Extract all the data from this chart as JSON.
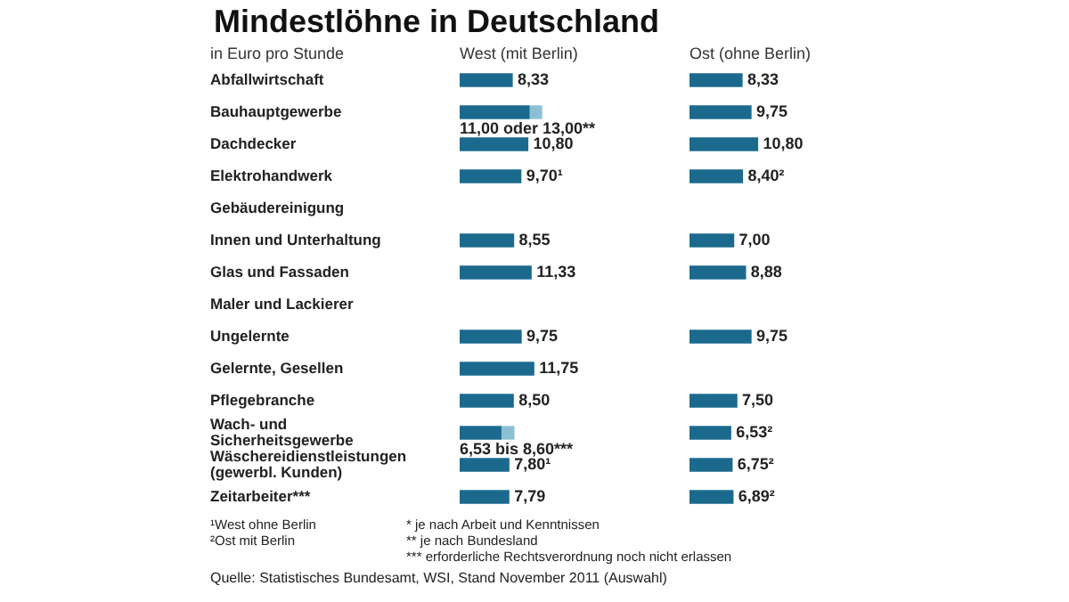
{
  "chart_data": [
    {
      "type": "bar",
      "orientation": "horizontal",
      "stacked": true,
      "title": "Mindestlöhne in Deutschland",
      "ylabel": "in Euro pro Stunde",
      "subtitle": "West (mit Berlin)",
      "tick_labels": "y",
      "legend": false,
      "grid": false,
      "categories": [
        "Abfallwirtschaft",
        "Bauhauptgewerbe",
        "Dachdecker",
        "Elektrohandwerk",
        "Gebäudereinigung",
        "Innen und Unterhaltung",
        "Glas und Fassaden",
        "Maler und Lackierer",
        "Ungelernte",
        "Gelernte, Gesellen",
        "Pflegebranche",
        "Wach- und Sicherheitsgewerbe",
        "Wäschereidienstleistungen (gewerbl. Kunden)",
        "Zeitarbeiter***"
      ],
      "series": [
        {
          "color": "#1b6a8e",
          "values": [
            8.33,
            11.0,
            10.8,
            9.7,
            null,
            8.55,
            11.33,
            null,
            9.75,
            11.75,
            8.5,
            6.53,
            7.8,
            7.79
          ],
          "value_labels": [
            "8,33",
            "11,00 oder 13,00**",
            "10,80",
            "9,70¹",
            null,
            "8,55",
            "11,33",
            null,
            "9,75",
            "11,75",
            "8,50",
            "6,53 bis 8,60***",
            "7,80¹",
            "7,79"
          ]
        },
        {
          "color": "#8cbfd4",
          "values": [
            null,
            2.0,
            null,
            null,
            null,
            null,
            null,
            null,
            null,
            null,
            null,
            2.07,
            null,
            null
          ]
        }
      ],
      "annotations": [
        "¹West ohne Berlin",
        "²Ost mit Berlin",
        "* je nach Arbeit und Kenntnissen",
        "** je nach Bundesland",
        "*** erforderliche Rechtsverordnung noch nicht erlassen",
        "Quelle: Statistisches Bundesamt, WSI, Stand November 2011 (Auswahl)"
      ]
    },
    {
      "type": "bar",
      "orientation": "horizontal",
      "stacked": true,
      "subtitle": "Ost (ohne Berlin)",
      "tick_labels": false,
      "legend": false,
      "grid": false,
      "categories": [
        null,
        null,
        null,
        null,
        null,
        null,
        null,
        null,
        null,
        null,
        null,
        null,
        null,
        null
      ],
      "series": [
        {
          "color": "#1b6a8e",
          "values": [
            8.33,
            9.75,
            10.8,
            8.4,
            null,
            7.0,
            8.88,
            null,
            9.75,
            null,
            7.5,
            6.53,
            6.75,
            6.89
          ],
          "value_labels": [
            "8,33",
            "9,75",
            "10,80",
            "8,40²",
            null,
            "7,00",
            "8,88",
            null,
            "9,75",
            null,
            "7,50",
            "6,53²",
            "6,75²",
            "6,89²"
          ]
        }
      ]
    }
  ]
}
